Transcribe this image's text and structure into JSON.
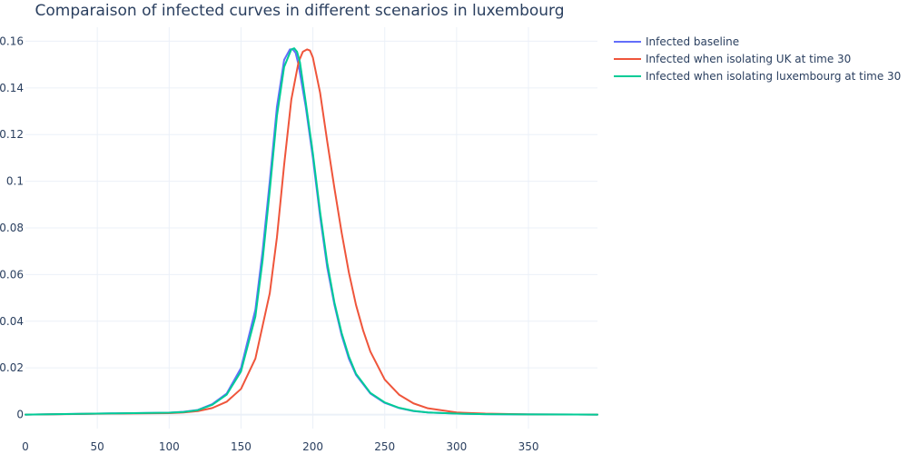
{
  "chart_data": {
    "type": "line",
    "title": "Comparaison of infected curves in different scenarios in luxembourg",
    "xlabel": "",
    "ylabel": "",
    "xlim": [
      0,
      398
    ],
    "ylim": [
      -0.006,
      0.166
    ],
    "x_ticks": [
      0,
      50,
      100,
      150,
      200,
      250,
      300,
      350
    ],
    "x_tick_labels": [
      "0",
      "50",
      "100",
      "150",
      "200",
      "250",
      "300",
      "350"
    ],
    "y_ticks": [
      0,
      0.02,
      0.04,
      0.06,
      0.08,
      0.1,
      0.12,
      0.14,
      0.16
    ],
    "y_tick_labels": [
      "0",
      "0.02",
      "0.04",
      "0.06",
      "0.08",
      "0.1",
      "0.12",
      "0.14",
      "0.16"
    ],
    "grid": true,
    "legend_position": "top-right",
    "series": [
      {
        "name": "Infected baseline",
        "color": "#636efa",
        "x": [
          0,
          60,
          100,
          110,
          120,
          130,
          140,
          150,
          160,
          165,
          170,
          175,
          180,
          184,
          186,
          188,
          190,
          195,
          200,
          205,
          210,
          215,
          220,
          225,
          230,
          240,
          250,
          260,
          270,
          280,
          300,
          320,
          350,
          398
        ],
        "y": [
          0,
          0.0005,
          0.0008,
          0.0012,
          0.002,
          0.0045,
          0.009,
          0.02,
          0.045,
          0.07,
          0.1,
          0.132,
          0.152,
          0.1565,
          0.1565,
          0.155,
          0.15,
          0.132,
          0.11,
          0.085,
          0.063,
          0.047,
          0.034,
          0.024,
          0.017,
          0.009,
          0.005,
          0.0028,
          0.0015,
          0.0009,
          0.0004,
          0.0002,
          0.0001,
          0
        ]
      },
      {
        "name": "Infected when isolating UK at time 30",
        "color": "#ef553b",
        "x": [
          0,
          60,
          100,
          110,
          120,
          130,
          140,
          150,
          160,
          170,
          175,
          180,
          185,
          190,
          193,
          196,
          198,
          200,
          205,
          210,
          215,
          220,
          225,
          230,
          235,
          240,
          250,
          260,
          270,
          280,
          300,
          320,
          350,
          398
        ],
        "y": [
          0,
          0.0004,
          0.0006,
          0.0009,
          0.0015,
          0.0028,
          0.0055,
          0.011,
          0.024,
          0.052,
          0.076,
          0.107,
          0.135,
          0.151,
          0.1555,
          0.1565,
          0.156,
          0.153,
          0.138,
          0.117,
          0.097,
          0.078,
          0.061,
          0.047,
          0.036,
          0.027,
          0.015,
          0.0085,
          0.0048,
          0.0027,
          0.0009,
          0.0004,
          0.0001,
          0
        ]
      },
      {
        "name": "Infected when isolating luxembourg at time 30",
        "color": "#00cc96",
        "x": [
          0,
          60,
          100,
          110,
          120,
          130,
          140,
          150,
          160,
          165,
          170,
          175,
          180,
          185,
          187,
          189,
          191,
          195,
          200,
          205,
          210,
          215,
          220,
          225,
          230,
          240,
          250,
          260,
          270,
          280,
          300,
          320,
          350,
          398
        ],
        "y": [
          0,
          0.0005,
          0.0008,
          0.0011,
          0.0019,
          0.0042,
          0.0085,
          0.0185,
          0.042,
          0.066,
          0.096,
          0.128,
          0.149,
          0.1565,
          0.157,
          0.1555,
          0.151,
          0.134,
          0.112,
          0.087,
          0.065,
          0.048,
          0.035,
          0.025,
          0.0175,
          0.0093,
          0.0052,
          0.0029,
          0.0016,
          0.0009,
          0.0004,
          0.0002,
          0.0001,
          0
        ]
      }
    ]
  }
}
